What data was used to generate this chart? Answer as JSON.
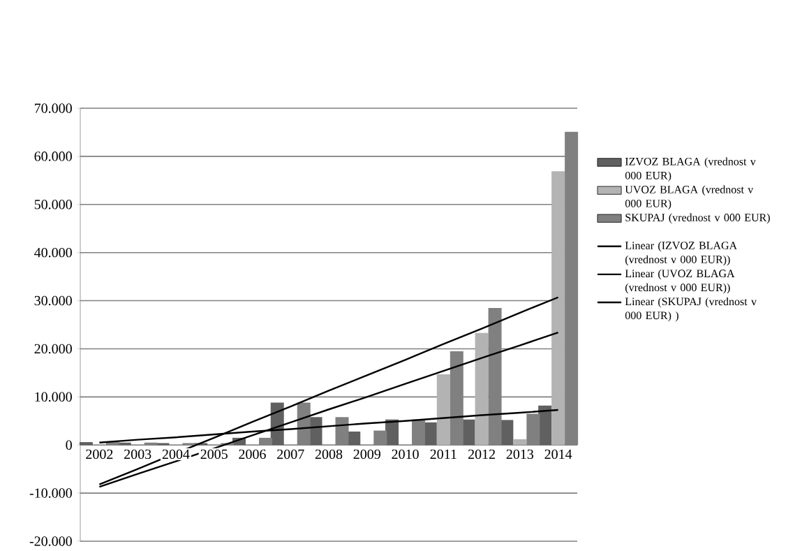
{
  "chart_data": {
    "type": "bar",
    "categories": [
      "2002",
      "2003",
      "2004",
      "2005",
      "2006",
      "2007",
      "2008",
      "2009",
      "2010",
      "2011",
      "2012",
      "2013",
      "2014"
    ],
    "series": [
      {
        "name": "IZVOZ BLAGA (vrednost v 000 EUR)",
        "color": "#606060",
        "values": [
          600,
          500,
          400,
          400,
          1500,
          8800,
          5800,
          2800,
          5300,
          4700,
          5300,
          5200,
          8200
        ]
      },
      {
        "name": "UVOZ BLAGA (vrednost v 000 EUR)",
        "color": "#b3b3b3",
        "values": [
          0,
          0,
          0,
          0,
          0,
          0,
          0,
          0,
          0,
          14700,
          23300,
          1200,
          56900
        ]
      },
      {
        "name": "SKUPAJ  (vrednost v 000 EUR)",
        "color": "#808080",
        "values": [
          600,
          500,
          400,
          400,
          1500,
          8800,
          5800,
          3000,
          5300,
          19500,
          28500,
          6500,
          65100
        ]
      },
      {
        "name": "Linear (IZVOZ BLAGA (vrednost v 000 EUR))",
        "type": "line",
        "color": "#000000",
        "values": [
          500,
          1100,
          1600,
          2200,
          2800,
          3300,
          3900,
          4500,
          5000,
          5600,
          6200,
          6700,
          7300
        ]
      },
      {
        "name": "Linear (UVOZ BLAGA (vrednost v 000 EUR))",
        "type": "line",
        "color": "#000000",
        "values": [
          -8700,
          -6000,
          -3400,
          -700,
          2000,
          4700,
          7400,
          10000,
          12700,
          15400,
          18100,
          20700,
          23400
        ]
      },
      {
        "name": "Linear (SKUPAJ (vrednost v 000 EUR) )",
        "type": "line",
        "color": "#000000",
        "values": [
          -8200,
          -5000,
          -1700,
          1500,
          4800,
          8000,
          11300,
          14500,
          17700,
          21000,
          24200,
          27500,
          30700
        ]
      }
    ],
    "ylim": [
      -20000,
      70000
    ],
    "yticks": [
      {
        "value": -20000,
        "label": "-20.000"
      },
      {
        "value": -10000,
        "label": "-10.000"
      },
      {
        "value": 0,
        "label": "0"
      },
      {
        "value": 10000,
        "label": "10.000"
      },
      {
        "value": 20000,
        "label": "20.000"
      },
      {
        "value": 30000,
        "label": "30.000"
      },
      {
        "value": 40000,
        "label": "40.000"
      },
      {
        "value": 50000,
        "label": "50.000"
      },
      {
        "value": 60000,
        "label": "60.000"
      },
      {
        "value": 70000,
        "label": "70.000"
      }
    ],
    "grid": "y",
    "legend": "right"
  }
}
